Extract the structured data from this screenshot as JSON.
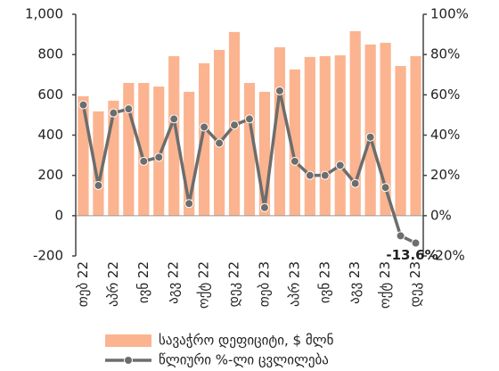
{
  "chart_data": {
    "type": "bar_line",
    "categories": [
      "თებ 22",
      null,
      "აპრ 22",
      null,
      "ივნ 22",
      null,
      "აგვ 22",
      null,
      "ოქტ 22",
      null,
      "დეკ 22",
      null,
      "თებ 23",
      null,
      "აპრ 23",
      null,
      "ივნ 23",
      null,
      "აგვ 23",
      null,
      "ოქტ 23",
      null,
      "დეკ 23"
    ],
    "series": [
      {
        "name": "სავაჭრო დეფიციტი, $ მლნ",
        "type": "bar",
        "color": "#fbb48f",
        "axis": "y",
        "values": [
          593,
          518,
          571,
          659,
          659,
          641,
          792,
          615,
          757,
          823,
          912,
          659,
          615,
          836,
          726,
          788,
          792,
          796,
          916,
          850,
          858,
          743,
          792
        ]
      },
      {
        "name": "წლიური %-ლი ცვლილება",
        "type": "line",
        "color": "#6d6d6d",
        "axis": "y2",
        "values": [
          55,
          15,
          51,
          53,
          27,
          29,
          48,
          6,
          44,
          36,
          45,
          48,
          4,
          62,
          27,
          20,
          20,
          25,
          16,
          39,
          14,
          -10,
          -13.6
        ],
        "value_labels": [
          null,
          null,
          null,
          null,
          null,
          null,
          null,
          null,
          null,
          null,
          null,
          null,
          null,
          null,
          null,
          null,
          null,
          null,
          null,
          null,
          null,
          null,
          "-13.6%"
        ]
      }
    ],
    "ylim": [
      -200,
      1000
    ],
    "yticks": [
      -200,
      0,
      200,
      400,
      600,
      800,
      {
        "value": 1000,
        "label": "1,000"
      }
    ],
    "y2lim": [
      -20,
      100
    ],
    "y2ticks": [
      {
        "value": -20,
        "label": "-20%"
      },
      {
        "value": 0,
        "label": "0%"
      },
      {
        "value": 20,
        "label": "20%"
      },
      {
        "value": 40,
        "label": "40%"
      },
      {
        "value": 60,
        "label": "60%"
      },
      {
        "value": 80,
        "label": "80%"
      },
      {
        "value": 100,
        "label": "100%"
      }
    ]
  }
}
